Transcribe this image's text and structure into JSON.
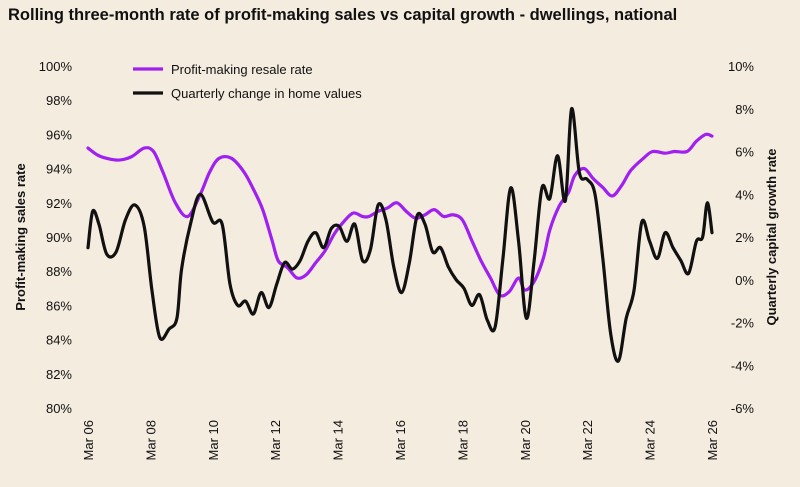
{
  "chart_data": {
    "type": "line",
    "title": "Rolling three-month rate of profit-making sales vs capital growth - dwellings, national",
    "ylabel_left": "Profit-making sales rate",
    "ylabel_right": "Quarterly capital growth rate",
    "y_left_range": [
      80,
      100
    ],
    "y_left_ticks": [
      "100%",
      "98%",
      "96%",
      "94%",
      "92%",
      "90%",
      "88%",
      "86%",
      "84%",
      "82%",
      "80%"
    ],
    "y_right_range": [
      -6,
      10
    ],
    "y_right_ticks": [
      "10%",
      "8%",
      "6%",
      "4%",
      "2%",
      "0%",
      "-2%",
      "-4%",
      "-6%"
    ],
    "x_range": [
      2006.0,
      2026.0
    ],
    "x_ticks": [
      "Mar 06",
      "Mar 08",
      "Mar 10",
      "Mar 12",
      "Mar 14",
      "Mar 16",
      "Mar 18",
      "Mar 20",
      "Mar 22",
      "Mar 24",
      "Mar 26"
    ],
    "grid": false,
    "legend_position": "top-left",
    "series": [
      {
        "name": "Profit-making resale rate",
        "axis": "left",
        "color": "#a020f0",
        "x": [
          2006.0,
          2006.3,
          2006.6,
          2007.0,
          2007.4,
          2007.8,
          2008.1,
          2008.4,
          2008.8,
          2009.2,
          2009.6,
          2009.9,
          2010.2,
          2010.6,
          2011.0,
          2011.3,
          2011.6,
          2011.9,
          2012.1,
          2012.4,
          2012.7,
          2013.0,
          2013.3,
          2013.6,
          2013.9,
          2014.2,
          2014.5,
          2014.8,
          2015.0,
          2015.3,
          2015.6,
          2015.9,
          2016.2,
          2016.5,
          2016.8,
          2017.1,
          2017.4,
          2017.7,
          2018.0,
          2018.3,
          2018.6,
          2018.9,
          2019.2,
          2019.5,
          2019.8,
          2020.0,
          2020.3,
          2020.6,
          2020.8,
          2021.1,
          2021.4,
          2021.6,
          2021.9,
          2022.2,
          2022.5,
          2022.8,
          2023.1,
          2023.4,
          2023.8,
          2024.1,
          2024.5,
          2024.8,
          2025.2,
          2025.5,
          2025.8,
          2026.0
        ],
        "y": [
          95.2,
          94.8,
          94.6,
          94.5,
          94.7,
          95.2,
          95.0,
          93.8,
          92.0,
          91.2,
          92.5,
          93.8,
          94.6,
          94.6,
          93.8,
          92.8,
          91.6,
          89.8,
          88.6,
          88.2,
          87.6,
          87.8,
          88.5,
          89.2,
          90.2,
          90.9,
          91.4,
          91.2,
          91.2,
          91.5,
          91.7,
          92.0,
          91.5,
          91.1,
          91.3,
          91.6,
          91.2,
          91.3,
          91.0,
          89.8,
          88.6,
          87.6,
          86.6,
          86.8,
          87.6,
          86.9,
          87.4,
          88.8,
          90.4,
          91.8,
          92.6,
          93.6,
          94.0,
          93.4,
          92.9,
          92.4,
          93.0,
          93.9,
          94.6,
          95.0,
          94.9,
          95.0,
          95.0,
          95.6,
          96.0,
          95.9
        ]
      },
      {
        "name": "Quarterly change in home values",
        "axis": "right",
        "color": "#111111",
        "x": [
          2006.0,
          2006.15,
          2006.35,
          2006.6,
          2006.9,
          2007.2,
          2007.5,
          2007.8,
          2008.05,
          2008.3,
          2008.6,
          2008.85,
          2009.0,
          2009.3,
          2009.6,
          2010.0,
          2010.3,
          2010.55,
          2010.8,
          2011.05,
          2011.3,
          2011.55,
          2011.8,
          2012.05,
          2012.3,
          2012.55,
          2012.8,
          2013.05,
          2013.3,
          2013.55,
          2013.8,
          2014.05,
          2014.3,
          2014.55,
          2014.8,
          2015.05,
          2015.3,
          2015.55,
          2015.8,
          2016.05,
          2016.3,
          2016.55,
          2016.8,
          2017.05,
          2017.3,
          2017.55,
          2017.8,
          2018.05,
          2018.3,
          2018.55,
          2018.8,
          2019.05,
          2019.3,
          2019.55,
          2019.8,
          2020.05,
          2020.3,
          2020.55,
          2020.8,
          2021.05,
          2021.3,
          2021.5,
          2021.75,
          2022.0,
          2022.25,
          2022.5,
          2022.75,
          2023.0,
          2023.25,
          2023.5,
          2023.75,
          2024.0,
          2024.25,
          2024.5,
          2024.75,
          2025.0,
          2025.25,
          2025.5,
          2025.7,
          2025.85,
          2026.0
        ],
        "y": [
          1.5,
          3.2,
          2.6,
          1.2,
          1.3,
          2.8,
          3.5,
          2.5,
          -0.5,
          -2.7,
          -2.3,
          -1.8,
          0.5,
          2.7,
          4.0,
          2.7,
          2.6,
          -0.2,
          -1.2,
          -1.0,
          -1.6,
          -0.6,
          -1.3,
          -0.2,
          0.8,
          0.5,
          0.9,
          1.8,
          2.2,
          1.5,
          2.4,
          2.5,
          1.8,
          2.6,
          0.9,
          1.4,
          3.5,
          2.8,
          0.6,
          -0.6,
          0.8,
          3.0,
          2.6,
          1.3,
          1.5,
          0.6,
          0.0,
          -0.4,
          -1.2,
          -0.7,
          -1.9,
          -2.2,
          1.0,
          4.3,
          1.8,
          -1.8,
          0.9,
          4.3,
          3.8,
          5.8,
          3.7,
          8.0,
          5.0,
          4.7,
          4.0,
          1.0,
          -2.5,
          -3.8,
          -1.8,
          -0.5,
          2.7,
          1.8,
          1.0,
          2.2,
          1.5,
          0.9,
          0.3,
          1.8,
          2.0,
          3.6,
          2.2
        ]
      }
    ]
  }
}
